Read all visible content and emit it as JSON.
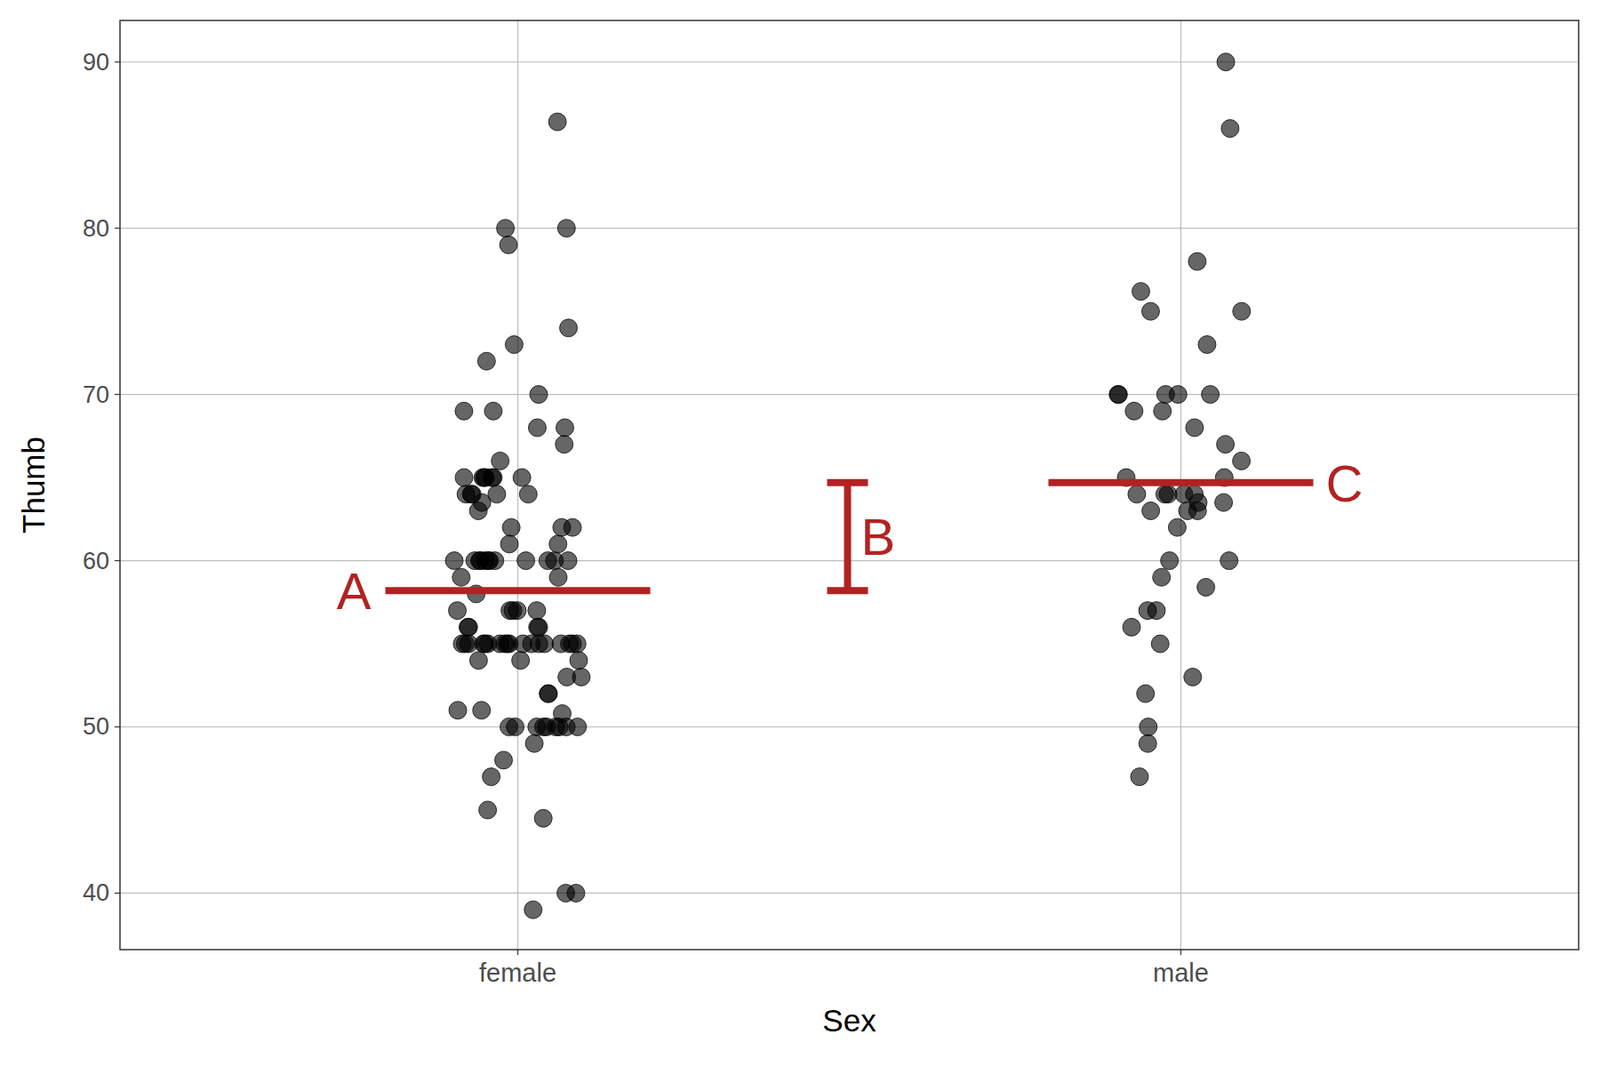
{
  "chart_data": {
    "type": "strip",
    "x_label": "Sex",
    "y_label": "Thumb",
    "categories": [
      "female",
      "male"
    ],
    "values": [
      [
        86.4,
        80,
        80,
        79,
        74,
        73,
        72,
        70,
        69,
        69,
        68,
        68,
        67,
        66,
        65,
        65,
        65,
        65,
        65,
        65,
        65,
        64,
        64,
        64,
        64,
        64,
        63.5,
        63,
        62,
        62,
        62,
        61,
        61,
        60,
        60,
        60,
        60,
        60,
        60,
        60,
        60,
        60,
        60,
        60,
        60,
        59,
        59,
        58,
        57,
        57,
        57,
        57,
        57,
        56,
        56,
        56,
        56,
        55,
        55,
        55,
        55,
        55,
        55,
        55,
        55,
        55,
        55,
        55,
        55,
        55,
        55,
        55,
        55,
        55,
        55,
        54,
        54,
        54,
        53,
        53,
        52,
        52,
        51,
        51,
        50.8,
        50,
        50,
        50,
        50,
        50,
        50,
        50,
        50,
        50,
        49,
        48,
        47,
        45,
        44.5,
        40,
        40,
        39
      ],
      [
        90,
        86,
        78,
        76.2,
        75,
        75,
        73,
        70,
        70,
        70,
        70,
        70,
        69,
        69,
        68,
        67,
        66,
        65,
        65,
        64,
        64,
        64,
        64,
        64,
        63.5,
        63.5,
        63,
        63,
        63,
        62,
        60,
        60,
        59,
        58.4,
        57,
        57,
        56,
        55,
        53,
        52,
        50,
        49,
        47
      ]
    ],
    "annotations": [
      {
        "label": "A",
        "value": 58.2
      },
      {
        "label": "B",
        "from": 58.2,
        "to": 64.7
      },
      {
        "label": "C",
        "value": 64.7
      }
    ],
    "color": "#b22222",
    "ylim": [
      36.6,
      92.5
    ],
    "yticks": [
      40,
      50,
      60,
      70,
      80,
      90
    ],
    "grid": true
  }
}
